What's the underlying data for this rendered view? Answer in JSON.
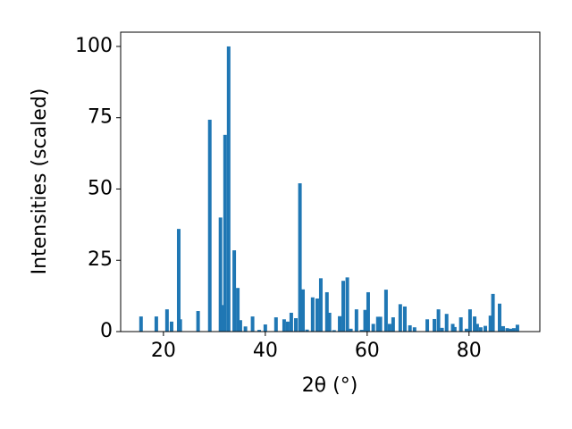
{
  "chart_data": {
    "type": "bar",
    "xlabel": "2θ (°)",
    "ylabel": "Intensities (scaled)",
    "color": "#1f77b4",
    "x": [
      15.6,
      18.6,
      20.7,
      21.6,
      23.0,
      23.3,
      26.8,
      29.1,
      31.2,
      31.6,
      32.1,
      32.8,
      33.9,
      34.6,
      35.1,
      36.1,
      37.5,
      38.8,
      40.0,
      42.1,
      43.7,
      44.4,
      45.1,
      46.0,
      46.8,
      47.4,
      48.2,
      49.3,
      50.2,
      50.9,
      52.1,
      52.6,
      53.5,
      54.6,
      55.3,
      56.1,
      56.8,
      57.9,
      58.9,
      59.6,
      60.2,
      61.2,
      62.1,
      62.6,
      63.7,
      64.4,
      65.1,
      66.5,
      67.4,
      68.4,
      69.3,
      71.8,
      73.2,
      74.0,
      74.7,
      75.6,
      76.8,
      77.2,
      78.4,
      79.5,
      80.2,
      81.1,
      81.6,
      82.3,
      83.2,
      84.2,
      84.7,
      86.0,
      86.7,
      87.5,
      88.2,
      88.8,
      89.5
    ],
    "values": [
      5.3,
      5.3,
      7.8,
      3.5,
      36,
      4.3,
      7.2,
      74.3,
      40,
      9.3,
      69,
      100,
      28.5,
      15.3,
      4,
      1.8,
      5.3,
      0.6,
      2.5,
      5,
      4.3,
      3.5,
      6.6,
      4.7,
      52,
      14.8,
      0.7,
      12,
      11.6,
      18.7,
      13.8,
      6.6,
      0.5,
      5.4,
      17.8,
      19,
      1,
      7.8,
      0.6,
      7.6,
      13.8,
      2.7,
      5.2,
      5.2,
      14.7,
      2.7,
      5,
      9.6,
      8.8,
      2.2,
      1.5,
      4.3,
      4.4,
      7.8,
      1.3,
      6.2,
      2.7,
      1.6,
      5,
      1,
      7.8,
      5.3,
      2.7,
      1.5,
      2,
      5.6,
      13.2,
      9.8,
      1.9,
      1.2,
      1,
      1.2,
      2.4
    ],
    "xlim": [
      11.6,
      93.9
    ],
    "xticks": [
      20,
      40,
      60,
      80
    ],
    "ylim": [
      0,
      105
    ],
    "yticks": [
      0,
      25,
      50,
      75,
      100
    ]
  }
}
